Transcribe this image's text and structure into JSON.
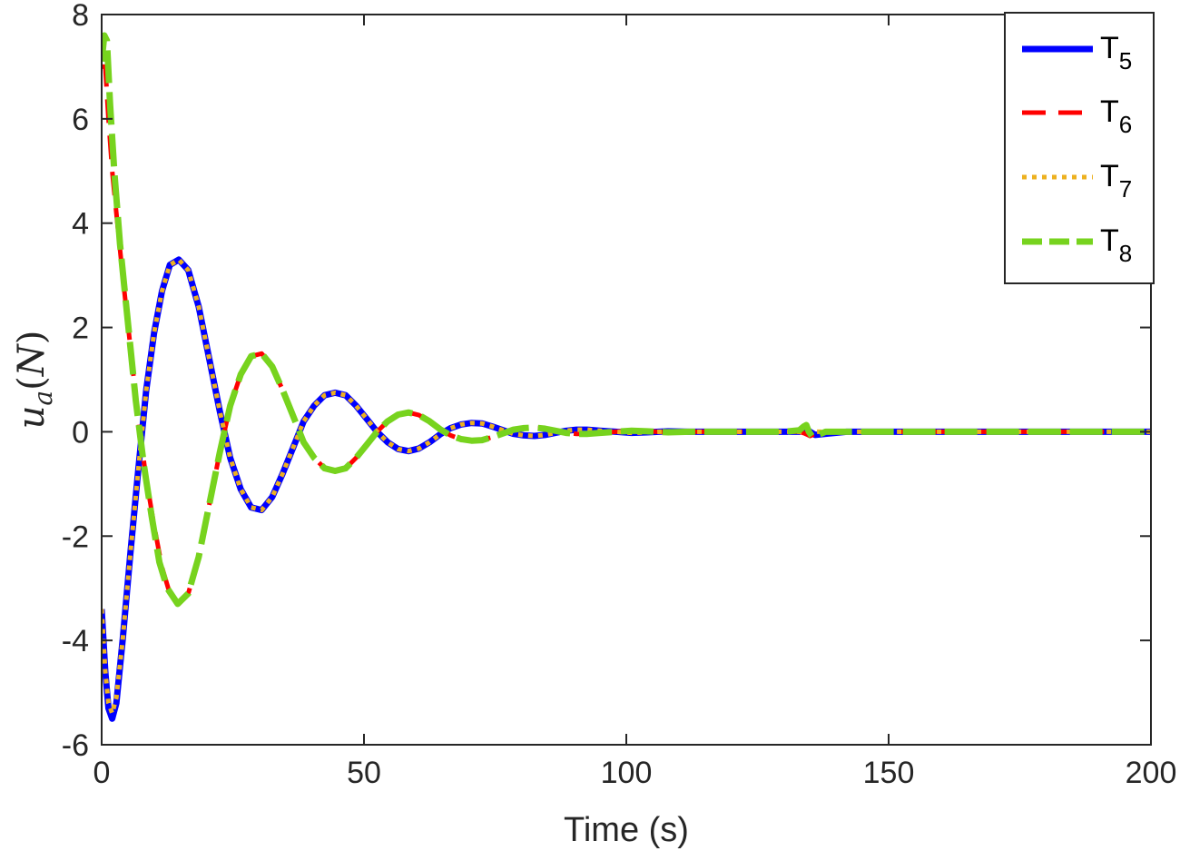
{
  "chart_data": {
    "type": "line",
    "title": "",
    "xlabel": "Time (s)",
    "ylabel": {
      "main": "u",
      "sub": "a",
      "unit": "N"
    },
    "xlim": [
      0,
      200
    ],
    "ylim": [
      -6,
      8
    ],
    "xticks": [
      0,
      50,
      100,
      150,
      200
    ],
    "yticks": [
      -6,
      -4,
      -2,
      0,
      2,
      4,
      6,
      8
    ],
    "xtick_labels": [
      "0",
      "50",
      "100",
      "150",
      "200"
    ],
    "ytick_labels": [
      "-6",
      "-4",
      "-2",
      "0",
      "2",
      "4",
      "6",
      "8"
    ],
    "grid": false,
    "legend_position": "top-right",
    "series": [
      {
        "name": "T",
        "sub": "5",
        "color": "#0000ff",
        "style": "solid",
        "points": [
          [
            0,
            -3.4
          ],
          [
            0.7,
            -4.6
          ],
          [
            1.3,
            -5.3
          ],
          [
            2,
            -5.5
          ],
          [
            2.8,
            -5.2
          ],
          [
            4,
            -4.0
          ],
          [
            5.5,
            -2.3
          ],
          [
            7,
            -0.7
          ],
          [
            8.5,
            0.8
          ],
          [
            10,
            1.9
          ],
          [
            11.5,
            2.7
          ],
          [
            13,
            3.2
          ],
          [
            14.7,
            3.3
          ],
          [
            16.5,
            3.1
          ],
          [
            18.5,
            2.4
          ],
          [
            20.5,
            1.4
          ],
          [
            22.5,
            0.4
          ],
          [
            24.5,
            -0.5
          ],
          [
            26.5,
            -1.1
          ],
          [
            28.5,
            -1.45
          ],
          [
            30.5,
            -1.5
          ],
          [
            32.5,
            -1.25
          ],
          [
            34.5,
            -0.8
          ],
          [
            36.5,
            -0.3
          ],
          [
            38.5,
            0.2
          ],
          [
            40.5,
            0.5
          ],
          [
            42.5,
            0.7
          ],
          [
            44.5,
            0.75
          ],
          [
            46.5,
            0.7
          ],
          [
            48.5,
            0.5
          ],
          [
            50.5,
            0.25
          ],
          [
            52.5,
            0.0
          ],
          [
            54.5,
            -0.2
          ],
          [
            56.5,
            -0.33
          ],
          [
            58.5,
            -0.37
          ],
          [
            60.5,
            -0.32
          ],
          [
            62.5,
            -0.2
          ],
          [
            64.5,
            -0.05
          ],
          [
            66.5,
            0.07
          ],
          [
            68.5,
            0.14
          ],
          [
            70.5,
            0.17
          ],
          [
            72.5,
            0.16
          ],
          [
            74.5,
            0.1
          ],
          [
            76.5,
            0.03
          ],
          [
            78.5,
            -0.04
          ],
          [
            80.5,
            -0.07
          ],
          [
            82.5,
            -0.08
          ],
          [
            84.5,
            -0.06
          ],
          [
            86.5,
            -0.02
          ],
          [
            88.5,
            0.02
          ],
          [
            90.5,
            0.04
          ],
          [
            92.5,
            0.04
          ],
          [
            95,
            0.02
          ],
          [
            98,
            0.0
          ],
          [
            101,
            -0.02
          ],
          [
            104,
            -0.01
          ],
          [
            108,
            0.01
          ],
          [
            112,
            0.0
          ],
          [
            120,
            0.0
          ],
          [
            130,
            0.0
          ],
          [
            133,
            0.0
          ],
          [
            134,
            0.03
          ],
          [
            134.5,
            0.05
          ],
          [
            135,
            0.0
          ],
          [
            136,
            -0.06
          ],
          [
            138,
            -0.04
          ],
          [
            142,
            0.0
          ],
          [
            150,
            0.0
          ],
          [
            160,
            0.0
          ],
          [
            170,
            0.0
          ],
          [
            180,
            0.0
          ],
          [
            190,
            0.0
          ],
          [
            200,
            0.0
          ]
        ]
      },
      {
        "name": "T",
        "sub": "6",
        "color": "#ff0000",
        "style": "dashed",
        "points": [
          [
            0,
            7.0
          ],
          [
            0.7,
            7.0
          ],
          [
            1.3,
            6.0
          ],
          [
            2,
            5.0
          ],
          [
            3,
            4.0
          ],
          [
            4,
            3.0
          ],
          [
            5.5,
            1.6
          ],
          [
            7,
            0.2
          ],
          [
            8.5,
            -0.9
          ],
          [
            10,
            -1.8
          ],
          [
            11.5,
            -2.6
          ],
          [
            13,
            -3.1
          ],
          [
            14.7,
            -3.3
          ],
          [
            16.5,
            -3.1
          ],
          [
            18.5,
            -2.4
          ],
          [
            20.5,
            -1.4
          ],
          [
            22.5,
            -0.4
          ],
          [
            24.5,
            0.5
          ],
          [
            26.5,
            1.1
          ],
          [
            28.5,
            1.45
          ],
          [
            30.5,
            1.5
          ],
          [
            32.5,
            1.25
          ],
          [
            34.5,
            0.8
          ],
          [
            36.5,
            0.3
          ],
          [
            38.5,
            -0.2
          ],
          [
            40.5,
            -0.5
          ],
          [
            42.5,
            -0.7
          ],
          [
            44.5,
            -0.75
          ],
          [
            46.5,
            -0.7
          ],
          [
            48.5,
            -0.5
          ],
          [
            50.5,
            -0.25
          ],
          [
            52.5,
            0.0
          ],
          [
            54.5,
            0.2
          ],
          [
            56.5,
            0.33
          ],
          [
            58.5,
            0.37
          ],
          [
            60.5,
            0.32
          ],
          [
            62.5,
            0.2
          ],
          [
            64.5,
            0.05
          ],
          [
            66.5,
            -0.07
          ],
          [
            68.5,
            -0.14
          ],
          [
            70.5,
            -0.17
          ],
          [
            72.5,
            -0.16
          ],
          [
            74.5,
            -0.1
          ],
          [
            76.5,
            -0.03
          ],
          [
            78.5,
            0.04
          ],
          [
            80.5,
            0.07
          ],
          [
            82.5,
            0.08
          ],
          [
            84.5,
            0.06
          ],
          [
            86.5,
            0.02
          ],
          [
            88.5,
            -0.02
          ],
          [
            90.5,
            -0.04
          ],
          [
            92.5,
            -0.04
          ],
          [
            95,
            -0.02
          ],
          [
            98,
            0.0
          ],
          [
            101,
            0.02
          ],
          [
            104,
            0.01
          ],
          [
            108,
            -0.01
          ],
          [
            112,
            0.0
          ],
          [
            120,
            0.0
          ],
          [
            130,
            0.0
          ],
          [
            133,
            0.0
          ],
          [
            134,
            -0.03
          ],
          [
            135,
            -0.08
          ],
          [
            136,
            -0.04
          ],
          [
            138,
            0.0
          ],
          [
            150,
            0.0
          ],
          [
            160,
            0.0
          ],
          [
            170,
            0.0
          ],
          [
            180,
            0.0
          ],
          [
            190,
            0.0
          ],
          [
            200,
            0.0
          ]
        ]
      },
      {
        "name": "T",
        "sub": "7",
        "color": "#edb120",
        "style": "dotted",
        "points": [
          [
            0,
            -3.4
          ],
          [
            0.7,
            -4.6
          ],
          [
            1.3,
            -5.2
          ],
          [
            2,
            -5.4
          ],
          [
            2.8,
            -5.1
          ],
          [
            4,
            -4.0
          ],
          [
            5.5,
            -2.3
          ],
          [
            7,
            -0.7
          ],
          [
            8.5,
            0.8
          ],
          [
            10,
            1.9
          ],
          [
            11.5,
            2.7
          ],
          [
            13,
            3.2
          ],
          [
            14.7,
            3.3
          ],
          [
            16.5,
            3.1
          ],
          [
            18.5,
            2.4
          ],
          [
            20.5,
            1.4
          ],
          [
            22.5,
            0.4
          ],
          [
            24.5,
            -0.5
          ],
          [
            26.5,
            -1.1
          ],
          [
            28.5,
            -1.45
          ],
          [
            30.5,
            -1.5
          ],
          [
            32.5,
            -1.25
          ],
          [
            34.5,
            -0.8
          ],
          [
            36.5,
            -0.3
          ],
          [
            38.5,
            0.2
          ],
          [
            40.5,
            0.5
          ],
          [
            42.5,
            0.7
          ],
          [
            44.5,
            0.75
          ],
          [
            46.5,
            0.7
          ],
          [
            48.5,
            0.5
          ],
          [
            50.5,
            0.25
          ],
          [
            52.5,
            0.0
          ],
          [
            54.5,
            -0.2
          ],
          [
            56.5,
            -0.33
          ],
          [
            58.5,
            -0.37
          ],
          [
            60.5,
            -0.32
          ],
          [
            62.5,
            -0.2
          ],
          [
            64.5,
            -0.05
          ],
          [
            66.5,
            0.07
          ],
          [
            68.5,
            0.14
          ],
          [
            70.5,
            0.17
          ],
          [
            72.5,
            0.16
          ],
          [
            74.5,
            0.1
          ],
          [
            76.5,
            0.03
          ],
          [
            78.5,
            -0.04
          ],
          [
            80.5,
            -0.07
          ],
          [
            82.5,
            -0.08
          ],
          [
            84.5,
            -0.06
          ],
          [
            86.5,
            -0.02
          ],
          [
            88.5,
            0.02
          ],
          [
            90.5,
            0.04
          ],
          [
            92.5,
            0.04
          ],
          [
            95,
            0.02
          ],
          [
            98,
            0.0
          ],
          [
            101,
            -0.02
          ],
          [
            104,
            -0.01
          ],
          [
            108,
            0.01
          ],
          [
            112,
            0.0
          ],
          [
            120,
            0.0
          ],
          [
            130,
            0.0
          ],
          [
            150,
            0.0
          ],
          [
            160,
            0.0
          ],
          [
            170,
            0.0
          ],
          [
            180,
            0.0
          ],
          [
            190,
            0.0
          ],
          [
            200,
            0.0
          ]
        ]
      },
      {
        "name": "T",
        "sub": "8",
        "color": "#77d31e",
        "style": "dash-long",
        "points": [
          [
            0,
            7.1
          ],
          [
            0.5,
            7.6
          ],
          [
            1.0,
            7.5
          ],
          [
            1.6,
            6.3
          ],
          [
            2.4,
            5.0
          ],
          [
            3.5,
            3.6
          ],
          [
            5,
            2.1
          ],
          [
            6.5,
            0.6
          ],
          [
            8,
            -0.6
          ],
          [
            9.5,
            -1.6
          ],
          [
            11,
            -2.5
          ],
          [
            12.5,
            -3.0
          ],
          [
            14.5,
            -3.3
          ],
          [
            16.5,
            -3.1
          ],
          [
            18.5,
            -2.4
          ],
          [
            20.5,
            -1.4
          ],
          [
            22.5,
            -0.4
          ],
          [
            24.5,
            0.5
          ],
          [
            26.5,
            1.1
          ],
          [
            28.5,
            1.45
          ],
          [
            30.5,
            1.5
          ],
          [
            32.5,
            1.25
          ],
          [
            34.5,
            0.8
          ],
          [
            36.5,
            0.3
          ],
          [
            38.5,
            -0.2
          ],
          [
            40.5,
            -0.5
          ],
          [
            42.5,
            -0.7
          ],
          [
            44.5,
            -0.75
          ],
          [
            46.5,
            -0.7
          ],
          [
            48.5,
            -0.5
          ],
          [
            50.5,
            -0.25
          ],
          [
            52.5,
            0.0
          ],
          [
            54.5,
            0.2
          ],
          [
            56.5,
            0.33
          ],
          [
            58.5,
            0.37
          ],
          [
            60.5,
            0.32
          ],
          [
            62.5,
            0.2
          ],
          [
            64.5,
            0.05
          ],
          [
            66.5,
            -0.07
          ],
          [
            68.5,
            -0.14
          ],
          [
            70.5,
            -0.17
          ],
          [
            72.5,
            -0.16
          ],
          [
            74.5,
            -0.1
          ],
          [
            76.5,
            -0.03
          ],
          [
            78.5,
            0.04
          ],
          [
            80.5,
            0.07
          ],
          [
            82.5,
            0.08
          ],
          [
            84.5,
            0.06
          ],
          [
            86.5,
            0.02
          ],
          [
            88.5,
            -0.02
          ],
          [
            90.5,
            -0.04
          ],
          [
            92.5,
            -0.04
          ],
          [
            95,
            -0.02
          ],
          [
            98,
            0.0
          ],
          [
            101,
            0.02
          ],
          [
            104,
            0.01
          ],
          [
            108,
            -0.01
          ],
          [
            112,
            0.0
          ],
          [
            120,
            0.0
          ],
          [
            130,
            0.0
          ],
          [
            133,
            0.03
          ],
          [
            133.8,
            0.1
          ],
          [
            134.3,
            0.13
          ],
          [
            134.8,
            0.0
          ],
          [
            135.5,
            -0.1
          ],
          [
            136.5,
            -0.06
          ],
          [
            138,
            0.0
          ],
          [
            150,
            0.0
          ],
          [
            160,
            0.0
          ],
          [
            170,
            0.0
          ],
          [
            180,
            0.0
          ],
          [
            190,
            0.0
          ],
          [
            200,
            0.0
          ]
        ]
      }
    ]
  }
}
